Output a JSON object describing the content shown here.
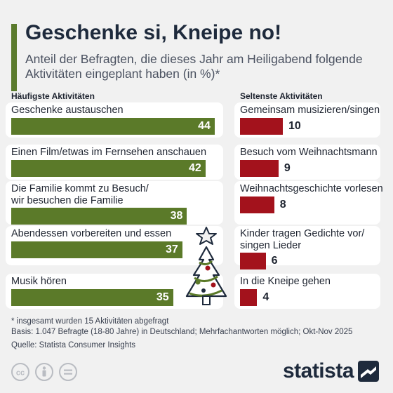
{
  "header": {
    "title": "Geschenke si, Kneipe no!",
    "subtitle": "Anteil der Befragten, die dieses Jahr am Heiligabend folgende Aktivitäten eingeplant haben (in %)*"
  },
  "colors": {
    "accent": "#5a7a2c",
    "green_bar": "#5b7a29",
    "red_bar": "#a3121c",
    "background": "#f1f1f1"
  },
  "chart_data": [
    {
      "type": "bar",
      "title": "Häufigste Aktivitäten",
      "categories": [
        "Geschenke austauschen",
        "Einen Film/etwas im Fernsehen anschauen",
        "Die Familie kommt zu Besuch/\nwir besuchen die Familie",
        "Abendessen vorbereiten und essen",
        "Musik hören"
      ],
      "values": [
        44,
        42,
        38,
        37,
        35
      ]
    },
    {
      "type": "bar",
      "title": "Seltenste Aktivitäten",
      "categories": [
        "Gemeinsam musizieren/singen",
        "Besuch vom Weihnachtsmann",
        "Weihnachtsgeschichte vorlesen",
        "Kinder tragen Gedichte vor/\nsingen Lieder",
        "In die Kneipe gehen"
      ],
      "values": [
        10,
        9,
        8,
        6,
        4
      ]
    }
  ],
  "footer": {
    "note": "* insgesamt wurden 15 Aktivitäten abgefragt",
    "basis": "Basis: 1.047 Befragte (18-80 Jahre) in Deutschland; Mehrfachantworten möglich; Okt-Nov 2025",
    "source": "Quelle: Statista Consumer Insights",
    "brand": "statista"
  },
  "icons": [
    "cc-icon",
    "person-icon",
    "equals-icon",
    "christmas-tree-icon",
    "statista-logo-icon"
  ]
}
